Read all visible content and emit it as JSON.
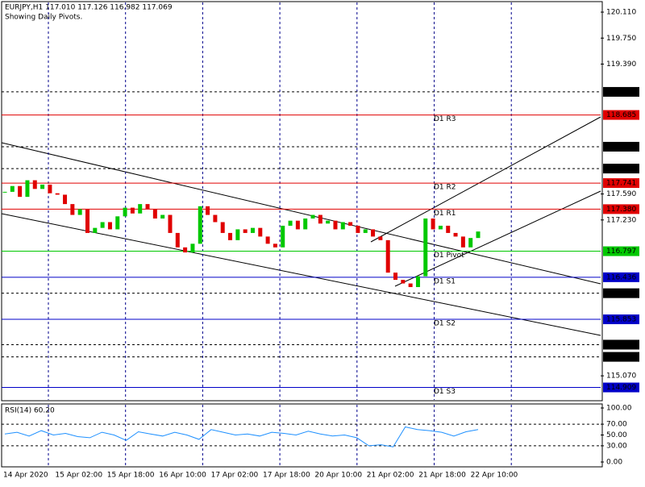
{
  "chart_data": {
    "type": "candlestick",
    "title": "EURJPY,H1  117.010 117.126 116.982 117.069",
    "subtitle": "Showing Daily Pivots.",
    "up_color": "#00c800",
    "down_color": "#e00000",
    "ylim": [
      114.725,
      120.278
    ],
    "yticks": [
      {
        "value": 120.11,
        "label": "120.110"
      },
      {
        "value": 119.75,
        "label": "119.750"
      },
      {
        "value": 119.39,
        "label": "119.390"
      },
      {
        "value": 117.59,
        "label": "117.590"
      },
      {
        "value": 117.23,
        "label": "117.230"
      },
      {
        "value": 115.07,
        "label": "115.070"
      }
    ],
    "levels": [
      {
        "value": 119.005,
        "color": "#000000",
        "dashed": true
      },
      {
        "value": 118.685,
        "color": "#e00000",
        "dashed": false,
        "name": "D1 R3"
      },
      {
        "value": 118.245,
        "color": "#000000",
        "dashed": true
      },
      {
        "value": 117.942,
        "color": "#000000",
        "dashed": true
      },
      {
        "value": 117.741,
        "color": "#e00000",
        "dashed": false,
        "name": "D1 R2"
      },
      {
        "value": {
          "value": 117.38,
          "label": "117.380"
        },
        "color": "#e00000",
        "dashed": false,
        "name": "D1 R1"
      },
      {
        "value": 116.797,
        "color": "#00c800",
        "dashed": false,
        "name": "D1 Pivot"
      },
      {
        "value": 116.436,
        "color": "#0000c8",
        "dashed": false,
        "name": "D1 S1"
      },
      {
        "value": 116.215,
        "color": "#000000",
        "dashed": true
      },
      {
        "value": 115.853,
        "color": "#0000c8",
        "dashed": false,
        "name": "D1 S2"
      },
      {
        "value": 115.502,
        "color": "#000000",
        "dashed": true
      },
      {
        "value": 115.333,
        "color": "#000000",
        "dashed": true
      },
      {
        "value": 114.909,
        "color": "#0000c8",
        "dashed": false,
        "name": "D1 S3"
      }
    ],
    "values": [
      117.62,
      117.7,
      117.55,
      117.78,
      117.66,
      117.72,
      117.6,
      117.58,
      117.45,
      117.3,
      117.38,
      117.05,
      117.12,
      117.2,
      117.1,
      117.28,
      117.4,
      117.32,
      117.45,
      117.38,
      117.25,
      117.3,
      117.05,
      116.85,
      116.78,
      116.9,
      117.42,
      117.3,
      117.2,
      117.05,
      116.95,
      117.1,
      117.05,
      117.12,
      117.0,
      116.9,
      116.85,
      117.15,
      117.22,
      117.1,
      117.25,
      117.3,
      117.18,
      117.22,
      117.1,
      117.2,
      117.15,
      117.05,
      117.1,
      117.0,
      116.95,
      116.5,
      116.4,
      116.35,
      116.3,
      116.45,
      117.25,
      117.1,
      117.15,
      117.05,
      117.0,
      116.85,
      116.98,
      117.07
    ],
    "time_labels": [
      "14 Apr 2020",
      "15 Apr 02:00",
      "15 Apr 18:00",
      "16 Apr 10:00",
      "17 Apr 02:00",
      "17 Apr 18:00",
      "20 Apr 10:00",
      "21 Apr 02:00",
      "21 Apr 18:00",
      "22 Apr 10:00"
    ],
    "rsi": {
      "title": "RSI(14) 60.20",
      "color": "#1e90ff",
      "ylim": [
        0,
        100
      ],
      "yticks": [
        {
          "value": 100,
          "label": "100.00"
        },
        {
          "value": 70,
          "label": "70.00"
        },
        {
          "value": 50,
          "label": "50.00"
        },
        {
          "value": 30,
          "label": "30.00"
        },
        {
          "value": 0,
          "label": "0.00"
        }
      ],
      "values": [
        52,
        55,
        48,
        58,
        50,
        53,
        47,
        45,
        55,
        50,
        40,
        56,
        52,
        48,
        55,
        50,
        42,
        60,
        55,
        50,
        52,
        48,
        55,
        53,
        50,
        57,
        52,
        48,
        50,
        45,
        30,
        32,
        28,
        65,
        60,
        58,
        55,
        48,
        56,
        60
      ]
    }
  }
}
